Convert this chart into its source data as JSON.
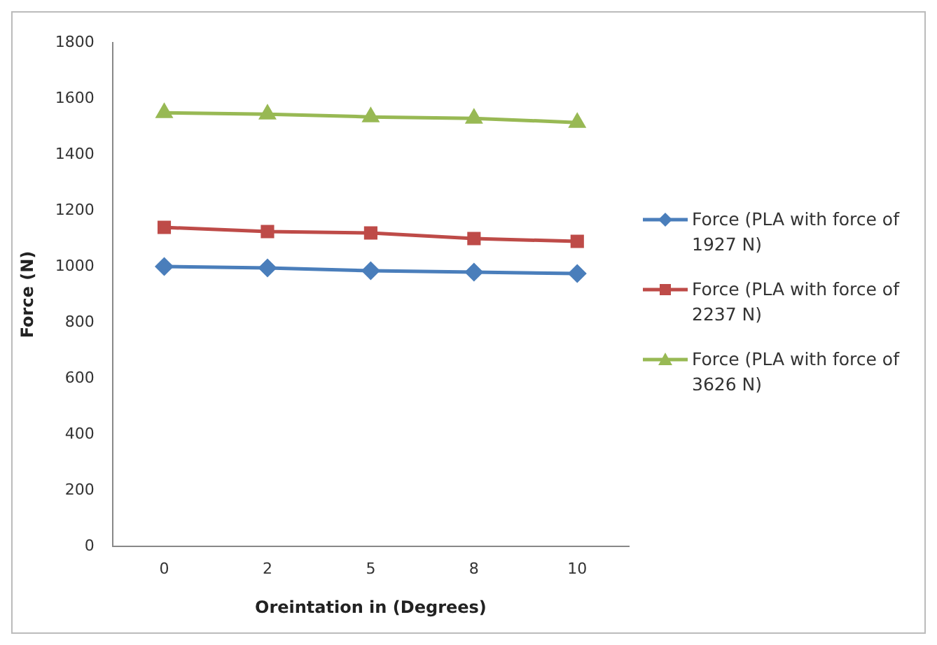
{
  "chart_data": {
    "type": "line",
    "xlabel": "Oreintation in (Degrees)",
    "ylabel": "Force (N)",
    "categories": [
      "0",
      "2",
      "5",
      "8",
      "10"
    ],
    "ylim": [
      0,
      1800
    ],
    "yticks": [
      0,
      200,
      400,
      600,
      800,
      1000,
      1200,
      1400,
      1600,
      1800
    ],
    "grid": false,
    "legend": "right",
    "line_style": "solid",
    "series": [
      {
        "name": "Force (PLA with force of 1927 N)",
        "color": "#4a7ebb",
        "marker": "diamond",
        "values": [
          1000,
          995,
          985,
          980,
          975
        ]
      },
      {
        "name": "Force (PLA with force of 2237 N)",
        "color": "#be4b48",
        "marker": "square",
        "values": [
          1140,
          1125,
          1120,
          1100,
          1090
        ]
      },
      {
        "name": "Force (PLA with force of 3626 N)",
        "color": "#98b954",
        "marker": "triangle",
        "values": [
          1550,
          1545,
          1535,
          1530,
          1515
        ]
      }
    ]
  }
}
